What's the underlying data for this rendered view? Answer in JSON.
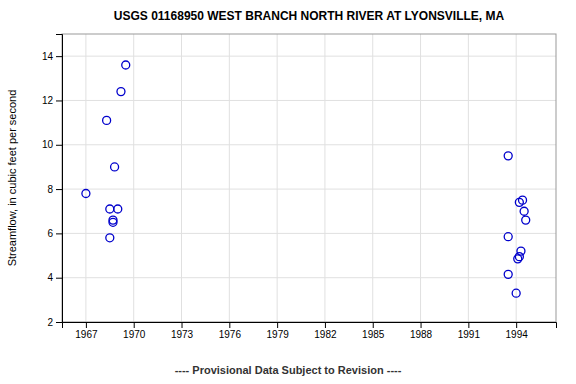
{
  "chart_data": {
    "type": "scatter",
    "title": "USGS 01168950 WEST BRANCH NORTH RIVER AT LYONSVILLE, MA",
    "ylabel": "Streamflow, in cubic feet per second",
    "footnote": "---- Provisional Data Subject to Revision ----",
    "x": [
      1967.0,
      1968.3,
      1968.8,
      1968.5,
      1968.7,
      1968.5,
      1968.7,
      1969.2,
      1969.5,
      1969.0,
      1993.5,
      1993.5,
      1993.5,
      1994.2,
      1994.4,
      1994.0,
      1994.5,
      1994.6,
      1994.3,
      1994.1,
      1994.2
    ],
    "values": [
      7.8,
      11.1,
      9.0,
      7.1,
      6.6,
      5.8,
      6.5,
      12.4,
      13.6,
      7.1,
      9.5,
      5.85,
      4.15,
      7.4,
      7.5,
      3.3,
      7.0,
      6.6,
      5.2,
      4.85,
      4.95
    ],
    "color": "#0000cc",
    "marker": "open-circle",
    "xlim": [
      1965.5,
      1996.5
    ],
    "ylim": [
      2,
      15
    ],
    "xticks": [
      1967,
      1970,
      1973,
      1976,
      1979,
      1982,
      1985,
      1988,
      1991,
      1994
    ],
    "yticks": [
      2,
      4,
      6,
      8,
      10,
      12,
      14
    ],
    "grid": true
  }
}
